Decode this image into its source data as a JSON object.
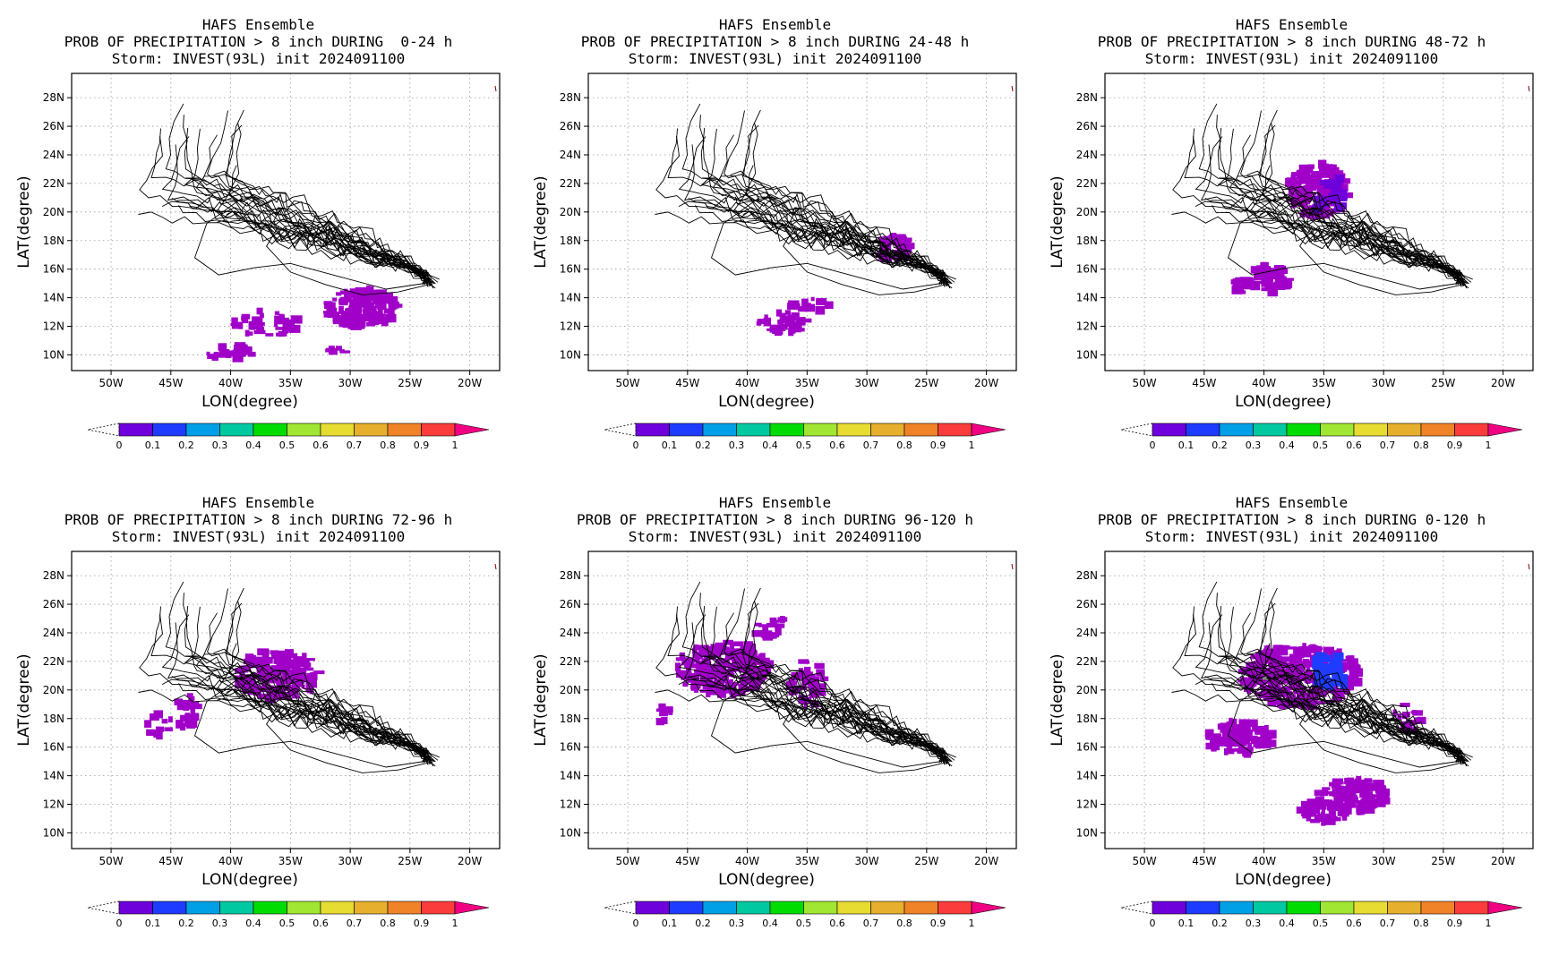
{
  "figure": {
    "panels": [
      {
        "title": "HAFS Ensemble",
        "subtitle": "PROB OF PRECIPITATION > 8 inch DURING  0-24 h",
        "storm_line": "Storm: INVEST(93L) init 2024091100",
        "window": "0-24 h",
        "max_prob_band": "0-0.1"
      },
      {
        "title": "HAFS Ensemble",
        "subtitle": "PROB OF PRECIPITATION > 8 inch DURING 24-48 h",
        "storm_line": "Storm: INVEST(93L) init 2024091100",
        "window": "24-48 h",
        "max_prob_band": "0-0.1"
      },
      {
        "title": "HAFS Ensemble",
        "subtitle": "PROB OF PRECIPITATION > 8 inch DURING 48-72 h",
        "storm_line": "Storm: INVEST(93L) init 2024091100",
        "window": "48-72 h",
        "max_prob_band": "0.1-0.2"
      },
      {
        "title": "HAFS Ensemble",
        "subtitle": "PROB OF PRECIPITATION > 8 inch DURING 72-96 h",
        "storm_line": "Storm: INVEST(93L) init 2024091100",
        "window": "72-96 h",
        "max_prob_band": "0-0.1"
      },
      {
        "title": "HAFS Ensemble",
        "subtitle": "PROB OF PRECIPITATION > 8 inch DURING 96-120 h",
        "storm_line": "Storm: INVEST(93L) init 2024091100",
        "window": "96-120 h",
        "max_prob_band": "0-0.1"
      },
      {
        "title": "HAFS Ensemble",
        "subtitle": "PROB OF PRECIPITATION > 8 inch DURING 0-120 h",
        "storm_line": "Storm: INVEST(93L) init 2024091100",
        "window": "0-120 h",
        "max_prob_band": "0.1-0.3"
      }
    ],
    "axes": {
      "xlabel": "LON(degree)",
      "ylabel": "LAT(degree)",
      "lon_ticks": [
        "50W",
        "45W",
        "40W",
        "35W",
        "30W",
        "25W",
        "20W"
      ],
      "lon_values": [
        -50,
        -45,
        -40,
        -35,
        -30,
        -25,
        -20
      ],
      "lat_ticks": [
        "28N",
        "26N",
        "24N",
        "22N",
        "20N",
        "18N",
        "16N",
        "14N",
        "12N",
        "10N"
      ],
      "lat_values": [
        28,
        26,
        24,
        22,
        20,
        18,
        16,
        14,
        12,
        10
      ],
      "lon_range": [
        -53.3,
        -17.5
      ],
      "lat_range": [
        8.9,
        29.7
      ],
      "grid": "dotted"
    },
    "colorbar": {
      "labels": [
        "0",
        "0.1",
        "0.2",
        "0.3",
        "0.4",
        "0.5",
        "0.6",
        "0.7",
        "0.8",
        "0.9",
        "1"
      ],
      "colors": [
        "#a000c8",
        "#6e00dc",
        "#1e3cff",
        "#00a0e6",
        "#00c8a0",
        "#00dc00",
        "#a0e632",
        "#e6dc32",
        "#e6af2d",
        "#f08228",
        "#fa3c3c",
        "#f00082"
      ]
    }
  }
}
